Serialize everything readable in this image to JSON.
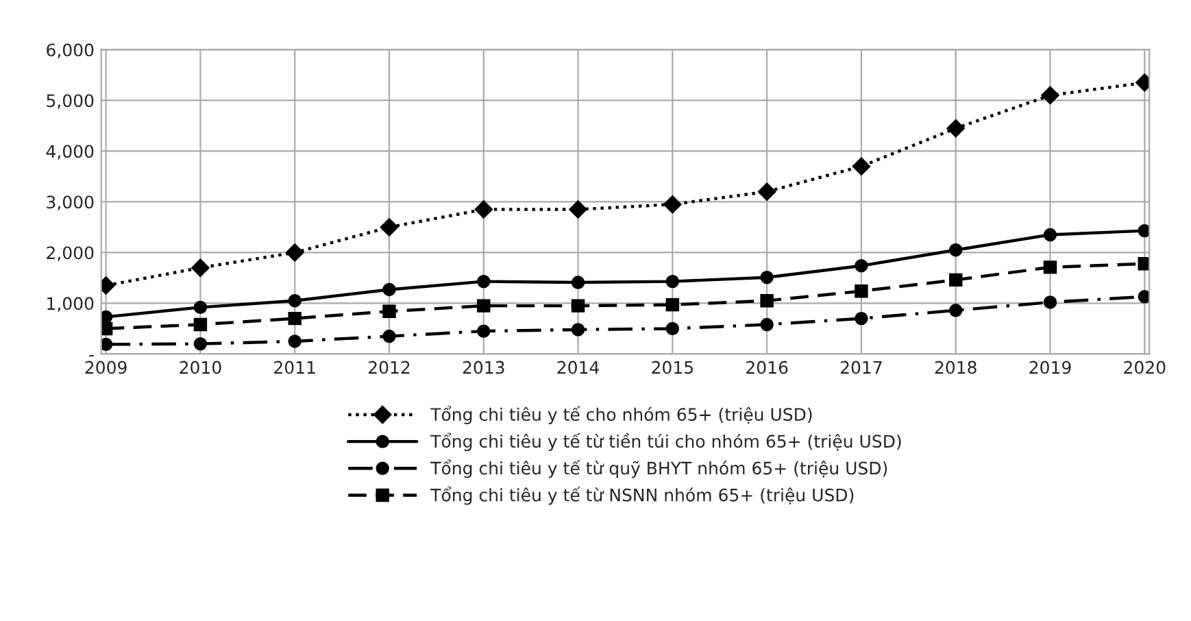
{
  "chart_data": {
    "type": "line",
    "categories": [
      "2009",
      "2010",
      "2011",
      "2012",
      "2013",
      "2014",
      "2015",
      "2016",
      "2017",
      "2018",
      "2019",
      "2020"
    ],
    "series": [
      {
        "name": "Tổng chi tiêu y tế cho nhóm 65+ (triệu USD)",
        "color": "#000000",
        "line_style": "dotted",
        "marker": "diamond",
        "values": [
          1350,
          1700,
          2000,
          2500,
          2850,
          2850,
          2950,
          3200,
          3700,
          4450,
          5100,
          5350
        ]
      },
      {
        "name": "Tổng chi tiêu y tế từ tiền túi cho nhóm 65+ (triệu USD)",
        "color": "#000000",
        "line_style": "solid",
        "marker": "circle",
        "values": [
          730,
          920,
          1050,
          1270,
          1430,
          1410,
          1430,
          1510,
          1740,
          2050,
          2350,
          2430
        ]
      },
      {
        "name": "Tổng chi tiêu y tế từ quỹ BHYT nhóm 65+ (triệu USD)",
        "color": "#000000",
        "line_style": "dashdot",
        "marker": "circle",
        "values": [
          190,
          200,
          250,
          350,
          450,
          480,
          500,
          580,
          700,
          860,
          1020,
          1130
        ]
      },
      {
        "name": "Tổng chi tiêu y tế từ NSNN nhóm 65+ (triệu USD)",
        "color": "#000000",
        "line_style": "dashed",
        "marker": "square",
        "values": [
          500,
          580,
          700,
          840,
          950,
          950,
          970,
          1050,
          1240,
          1460,
          1710,
          1780
        ]
      }
    ],
    "ylim": [
      0,
      6000
    ],
    "yticks": [
      {
        "value": 0,
        "label": "-"
      },
      {
        "value": 1000,
        "label": "1,000"
      },
      {
        "value": 2000,
        "label": "2,000"
      },
      {
        "value": 3000,
        "label": "3,000"
      },
      {
        "value": 4000,
        "label": "4,000"
      },
      {
        "value": 5000,
        "label": "5,000"
      },
      {
        "value": 6000,
        "label": "6,000"
      }
    ],
    "grid": true,
    "legend": "bottom"
  }
}
